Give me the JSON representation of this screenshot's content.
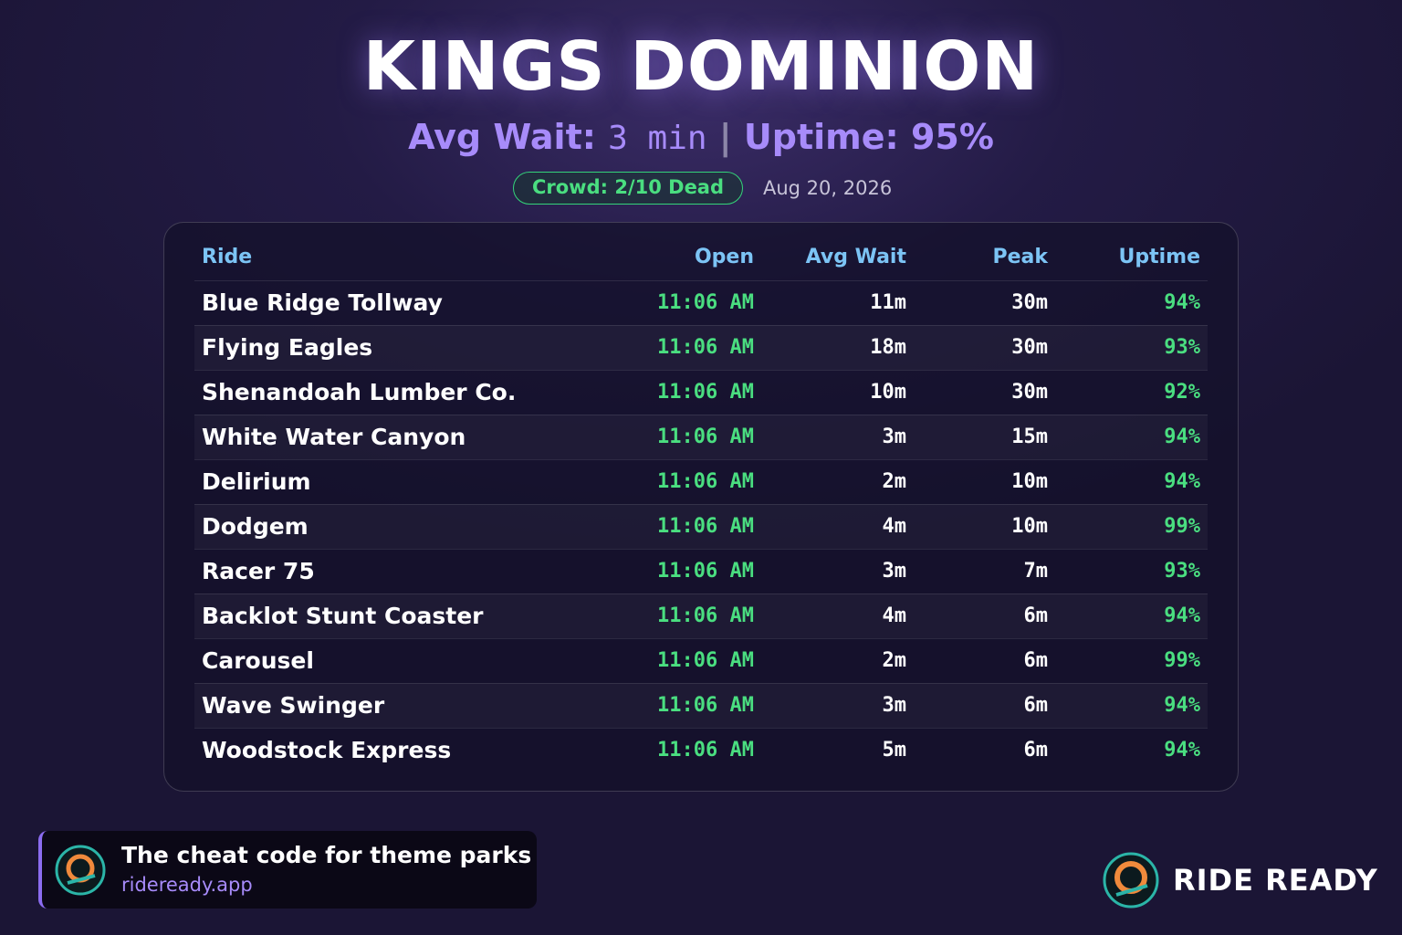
{
  "header": {
    "title": "KINGS DOMINION",
    "stats": {
      "avg_wait_label": "Avg Wait:",
      "avg_wait_value": "3 min",
      "separator": "|",
      "uptime": "Uptime: 95%"
    },
    "crowd": "Crowd: 2/10 Dead",
    "date": "Aug 20, 2026"
  },
  "table": {
    "columns": [
      "Ride",
      "Open",
      "Avg Wait",
      "Peak",
      "Uptime"
    ],
    "rows": [
      [
        "Blue Ridge Tollway",
        "11:06 AM",
        "11m",
        "30m",
        "94%"
      ],
      [
        "Flying Eagles",
        "11:06 AM",
        "18m",
        "30m",
        "93%"
      ],
      [
        "Shenandoah Lumber Co.",
        "11:06 AM",
        "10m",
        "30m",
        "92%"
      ],
      [
        "White Water Canyon",
        "11:06 AM",
        "3m",
        "15m",
        "94%"
      ],
      [
        "Delirium",
        "11:06 AM",
        "2m",
        "10m",
        "94%"
      ],
      [
        "Dodgem",
        "11:06 AM",
        "4m",
        "10m",
        "99%"
      ],
      [
        "Racer 75",
        "11:06 AM",
        "3m",
        "7m",
        "93%"
      ],
      [
        "Backlot Stunt Coaster",
        "11:06 AM",
        "4m",
        "6m",
        "94%"
      ],
      [
        "Carousel",
        "11:06 AM",
        "2m",
        "6m",
        "99%"
      ],
      [
        "Wave Swinger",
        "11:06 AM",
        "3m",
        "6m",
        "94%"
      ],
      [
        "Woodstock Express",
        "11:06 AM",
        "5m",
        "6m",
        "94%"
      ]
    ]
  },
  "footer": {
    "tagline": "The cheat code for theme parks",
    "url": "rideready.app",
    "brand": "RIDE READY"
  }
}
